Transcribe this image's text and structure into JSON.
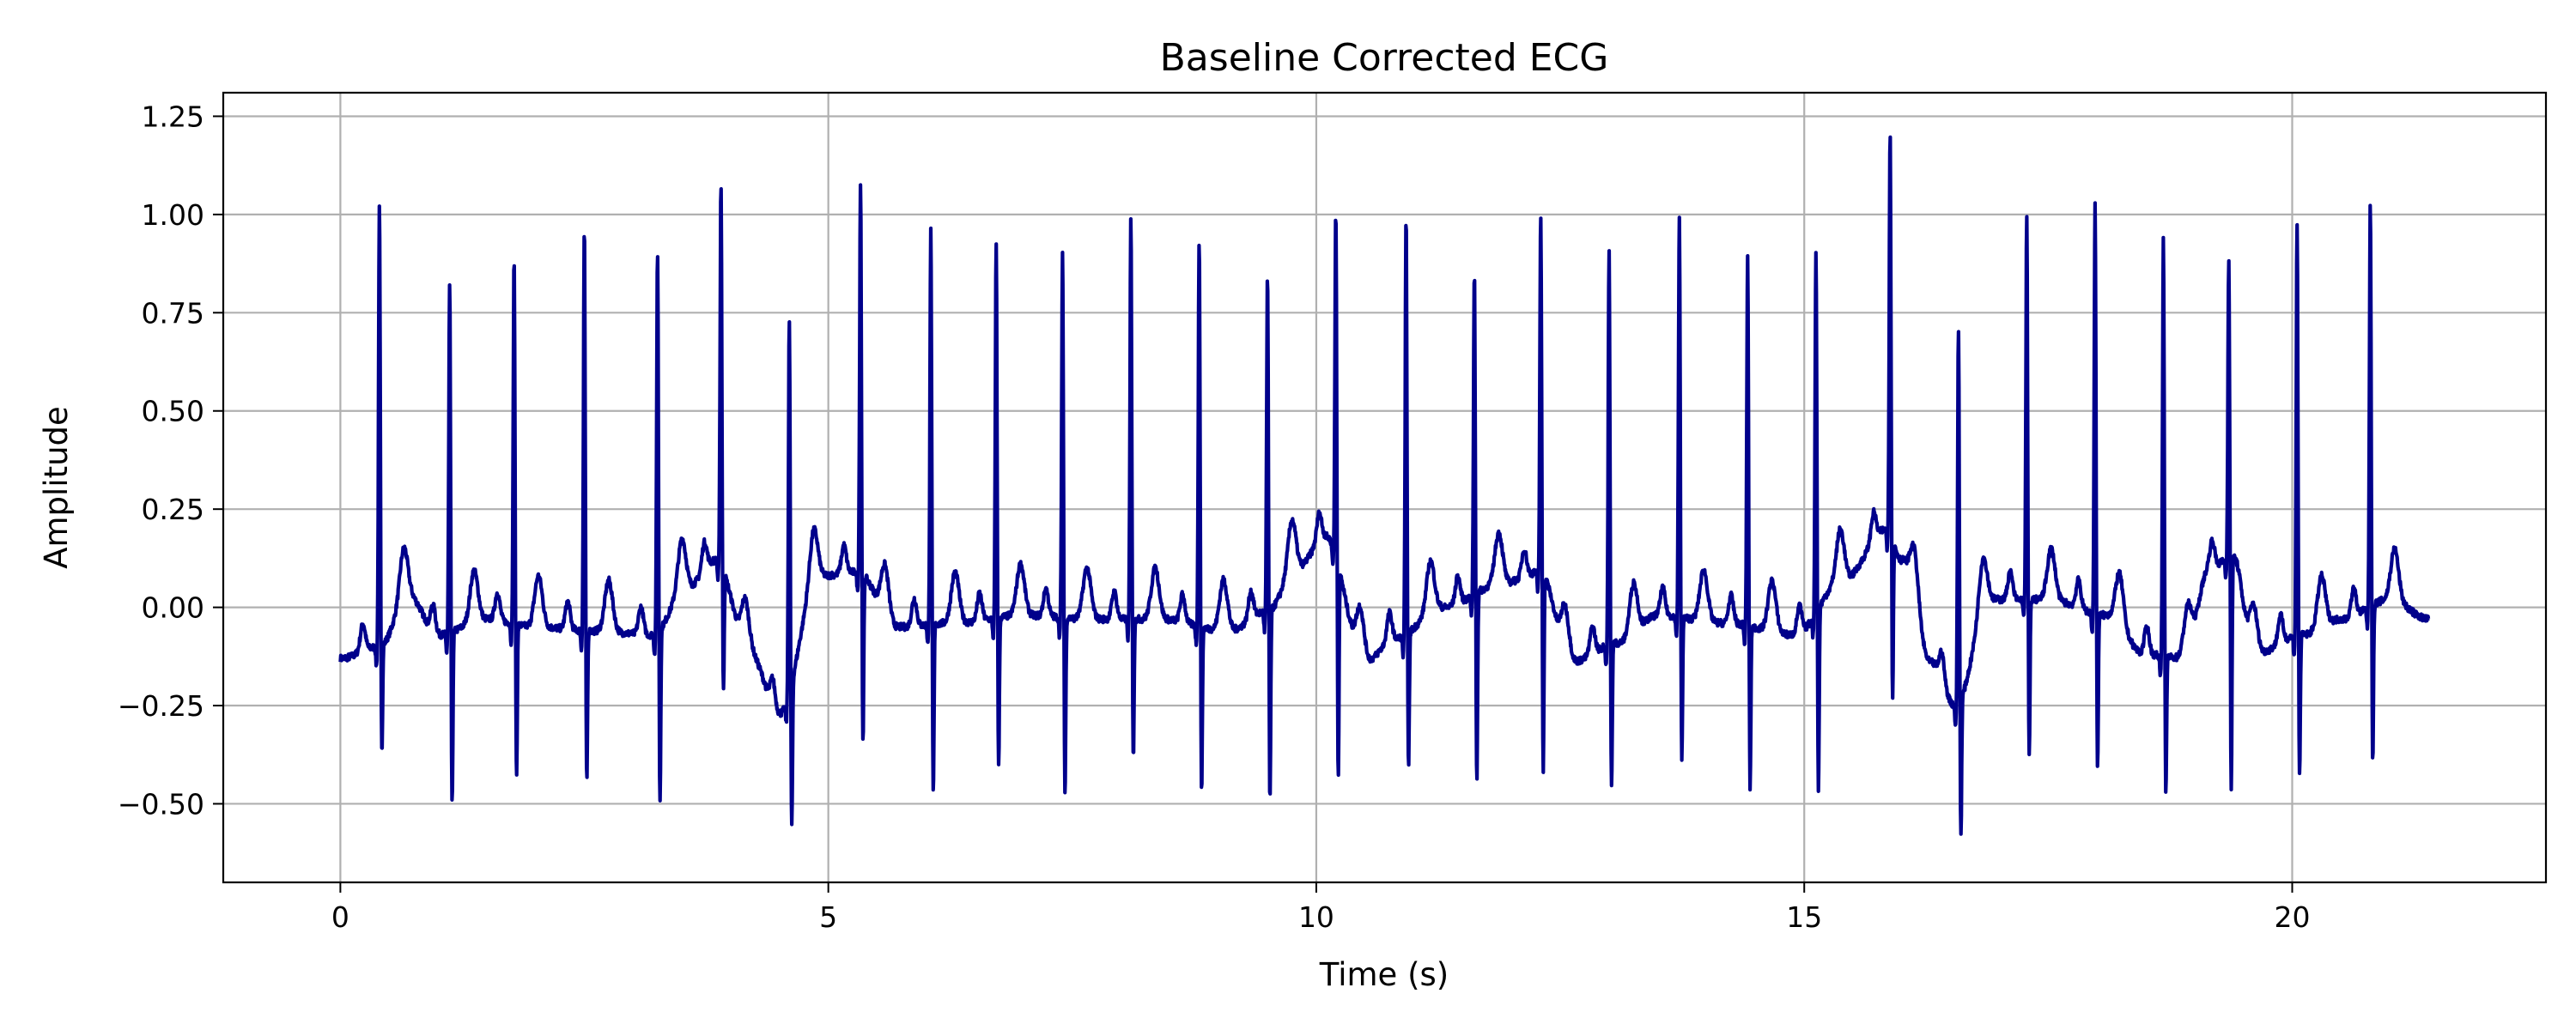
{
  "chart_data": {
    "type": "line",
    "title": "Baseline Corrected ECG",
    "xlabel": "Time (s)",
    "ylabel": "Amplitude",
    "xlim": [
      -1.2,
      22.6
    ],
    "ylim": [
      -0.7,
      1.31
    ],
    "xticks": [
      0,
      5,
      10,
      15,
      20
    ],
    "xtick_labels": [
      "0",
      "5",
      "10",
      "15",
      "20"
    ],
    "yticks": [
      -0.5,
      -0.25,
      0.0,
      0.25,
      0.5,
      0.75,
      1.0,
      1.25
    ],
    "ytick_labels": [
      "−0.50",
      "−0.25",
      "0.00",
      "0.25",
      "0.50",
      "0.75",
      "1.00",
      "1.25"
    ],
    "grid": true,
    "line_color": "#00008B",
    "series": [
      {
        "duration": 21.4,
        "beats": [
          {
            "t": 0.4,
            "r": 1.02,
            "s": -0.38
          },
          {
            "t": 1.12,
            "r": 0.82,
            "s": -0.52
          },
          {
            "t": 1.78,
            "r": 0.89,
            "s": -0.44
          },
          {
            "t": 2.5,
            "r": 0.97,
            "s": -0.46
          },
          {
            "t": 3.25,
            "r": 0.91,
            "s": -0.51
          },
          {
            "t": 3.9,
            "r": 1.08,
            "s": -0.21
          },
          {
            "t": 4.6,
            "r": 0.73,
            "s": -0.6
          },
          {
            "t": 5.33,
            "r": 1.08,
            "s": -0.36
          },
          {
            "t": 6.05,
            "r": 0.96,
            "s": -0.49
          },
          {
            "t": 6.72,
            "r": 0.92,
            "s": -0.41
          },
          {
            "t": 7.4,
            "r": 0.9,
            "s": -0.49
          },
          {
            "t": 8.1,
            "r": 0.99,
            "s": -0.4
          },
          {
            "t": 8.8,
            "r": 0.94,
            "s": -0.48
          },
          {
            "t": 9.5,
            "r": 0.84,
            "s": -0.51
          },
          {
            "t": 10.2,
            "r": 1.01,
            "s": -0.42
          },
          {
            "t": 10.92,
            "r": 0.99,
            "s": -0.43
          },
          {
            "t": 11.62,
            "r": 0.86,
            "s": -0.46
          },
          {
            "t": 12.3,
            "r": 1.0,
            "s": -0.42
          },
          {
            "t": 13.0,
            "r": 0.91,
            "s": -0.47
          },
          {
            "t": 13.72,
            "r": 0.99,
            "s": -0.4
          },
          {
            "t": 14.42,
            "r": 0.89,
            "s": -0.47
          },
          {
            "t": 15.12,
            "r": 0.91,
            "s": -0.49
          },
          {
            "t": 15.88,
            "r": 1.22,
            "s": -0.22
          },
          {
            "t": 16.58,
            "r": 0.71,
            "s": -0.6
          },
          {
            "t": 17.28,
            "r": 0.99,
            "s": -0.39
          },
          {
            "t": 17.98,
            "r": 1.03,
            "s": -0.42
          },
          {
            "t": 18.68,
            "r": 0.94,
            "s": -0.48
          },
          {
            "t": 19.35,
            "r": 0.89,
            "s": -0.47
          },
          {
            "t": 20.05,
            "r": 0.98,
            "s": -0.44
          },
          {
            "t": 20.8,
            "r": 1.03,
            "s": -0.41
          }
        ],
        "baseline_knots": [
          [
            0.0,
            -0.13
          ],
          [
            0.4,
            -0.1
          ],
          [
            0.7,
            0.03
          ],
          [
            1.0,
            -0.07
          ],
          [
            1.5,
            -0.03
          ],
          [
            2.0,
            -0.05
          ],
          [
            2.6,
            -0.06
          ],
          [
            3.2,
            -0.07
          ],
          [
            3.55,
            0.05
          ],
          [
            3.85,
            0.12
          ],
          [
            4.2,
            -0.12
          ],
          [
            4.5,
            -0.27
          ],
          [
            4.9,
            0.08
          ],
          [
            5.3,
            0.09
          ],
          [
            5.7,
            -0.05
          ],
          [
            6.3,
            -0.04
          ],
          [
            7.0,
            -0.02
          ],
          [
            7.7,
            -0.03
          ],
          [
            8.4,
            -0.03
          ],
          [
            9.1,
            -0.06
          ],
          [
            9.5,
            -0.01
          ],
          [
            9.8,
            0.1
          ],
          [
            10.1,
            0.18
          ],
          [
            10.5,
            -0.14
          ],
          [
            10.8,
            -0.08
          ],
          [
            11.3,
            0.0
          ],
          [
            11.9,
            0.06
          ],
          [
            12.3,
            0.09
          ],
          [
            12.6,
            -0.14
          ],
          [
            13.1,
            -0.09
          ],
          [
            13.5,
            -0.02
          ],
          [
            14.2,
            -0.04
          ],
          [
            14.9,
            -0.07
          ],
          [
            15.4,
            0.07
          ],
          [
            15.85,
            0.2
          ],
          [
            16.0,
            0.12
          ],
          [
            16.3,
            -0.14
          ],
          [
            16.55,
            -0.25
          ],
          [
            16.9,
            0.02
          ],
          [
            17.5,
            0.02
          ],
          [
            18.1,
            -0.02
          ],
          [
            18.5,
            -0.12
          ],
          [
            18.9,
            -0.13
          ],
          [
            19.15,
            0.1
          ],
          [
            19.4,
            0.13
          ],
          [
            19.6,
            -0.12
          ],
          [
            20.1,
            -0.07
          ],
          [
            20.5,
            -0.03
          ],
          [
            21.0,
            0.02
          ],
          [
            21.4,
            -0.03
          ]
        ]
      }
    ]
  }
}
